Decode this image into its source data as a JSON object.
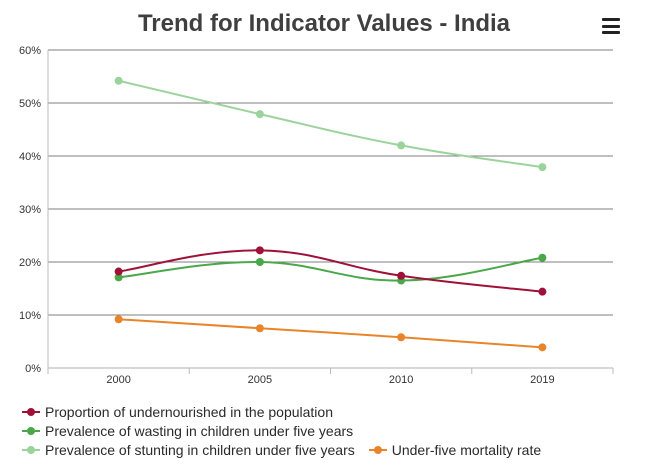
{
  "header": {
    "title": "Trend for Indicator Values - India",
    "menu_icon": "hamburger-icon"
  },
  "chart_data": {
    "type": "line",
    "title": "Trend for Indicator Values - India",
    "xlabel": "",
    "ylabel": "",
    "categories": [
      "2000",
      "2005",
      "2010",
      "2019"
    ],
    "y_ticks": [
      "0%",
      "10%",
      "20%",
      "30%",
      "40%",
      "50%",
      "60%"
    ],
    "ylim": [
      0,
      60
    ],
    "grid": true,
    "legend_position": "bottom-left",
    "series": [
      {
        "name": "Proportion of undernourished in the population",
        "color": "#a0113a",
        "values": [
          18.2,
          22.2,
          17.4,
          14.4
        ]
      },
      {
        "name": "Prevalence of wasting in children under five years",
        "color": "#4aa84a",
        "values": [
          17.1,
          20.0,
          16.5,
          20.8
        ]
      },
      {
        "name": "Prevalence of stunting in children under five years",
        "color": "#9cd39c",
        "values": [
          54.2,
          47.9,
          42.0,
          37.9
        ]
      },
      {
        "name": "Under-five mortality rate",
        "color": "#e8852b",
        "values": [
          9.2,
          7.5,
          5.8,
          3.9
        ]
      }
    ]
  }
}
